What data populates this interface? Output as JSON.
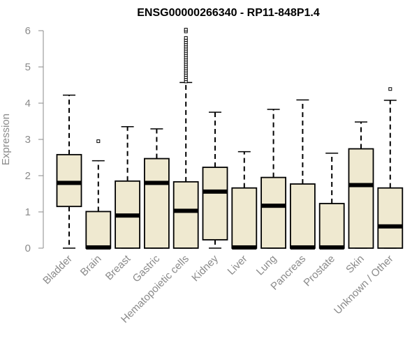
{
  "chart_data": {
    "type": "boxplot",
    "title": "ENSG00000266340 - RP11-848P1.4",
    "xlabel": "",
    "ylabel": "Expression",
    "ylim": [
      0,
      6
    ],
    "yticks": [
      "0",
      "1",
      "2",
      "3",
      "4",
      "5",
      "6"
    ],
    "grid": false,
    "box_fill": "#efe9d0",
    "categories": [
      "Bladder",
      "Brain",
      "Breast",
      "Gastric",
      "Hematopoietic cells",
      "Kidney",
      "Liver",
      "Lung",
      "Pancreas",
      "Prostate",
      "Skin",
      "Unknown / Other"
    ],
    "boxes": [
      {
        "whisker_low": 0.0,
        "q1": 1.15,
        "median": 1.8,
        "q3": 2.58,
        "whisker_high": 4.22,
        "outliers": []
      },
      {
        "whisker_low": 0.0,
        "q1": 0.0,
        "median": 0.02,
        "q3": 1.01,
        "whisker_high": 2.41,
        "outliers": [
          2.95
        ]
      },
      {
        "whisker_low": 0.0,
        "q1": 0.0,
        "median": 0.9,
        "q3": 1.85,
        "whisker_high": 3.35,
        "outliers": []
      },
      {
        "whisker_low": 0.0,
        "q1": 0.0,
        "median": 1.8,
        "q3": 2.47,
        "whisker_high": 3.29,
        "outliers": []
      },
      {
        "whisker_low": 0.0,
        "q1": 0.0,
        "median": 1.03,
        "q3": 1.83,
        "whisker_high": 4.57,
        "outliers": [
          4.6,
          4.66,
          4.72,
          4.78,
          4.84,
          4.9,
          4.96,
          5.02,
          5.08,
          5.14,
          5.2,
          5.26,
          5.32,
          5.38,
          5.44,
          5.5,
          5.56,
          5.62,
          5.68,
          5.74,
          5.8,
          5.98,
          6.03
        ]
      },
      {
        "whisker_low": 0.0,
        "q1": 0.23,
        "median": 1.56,
        "q3": 2.23,
        "whisker_high": 3.75,
        "outliers": []
      },
      {
        "whisker_low": 0.0,
        "q1": 0.0,
        "median": 0.02,
        "q3": 1.66,
        "whisker_high": 2.66,
        "outliers": []
      },
      {
        "whisker_low": 0.0,
        "q1": 0.0,
        "median": 1.17,
        "q3": 1.95,
        "whisker_high": 3.83,
        "outliers": []
      },
      {
        "whisker_low": 0.0,
        "q1": 0.0,
        "median": 0.02,
        "q3": 1.77,
        "whisker_high": 4.09,
        "outliers": []
      },
      {
        "whisker_low": 0.0,
        "q1": 0.0,
        "median": 0.02,
        "q3": 1.23,
        "whisker_high": 2.62,
        "outliers": []
      },
      {
        "whisker_low": 0.0,
        "q1": 0.0,
        "median": 1.74,
        "q3": 2.74,
        "whisker_high": 3.48,
        "outliers": []
      },
      {
        "whisker_low": 0.0,
        "q1": 0.0,
        "median": 0.6,
        "q3": 1.66,
        "whisker_high": 4.08,
        "outliers": [
          4.39
        ]
      }
    ]
  }
}
